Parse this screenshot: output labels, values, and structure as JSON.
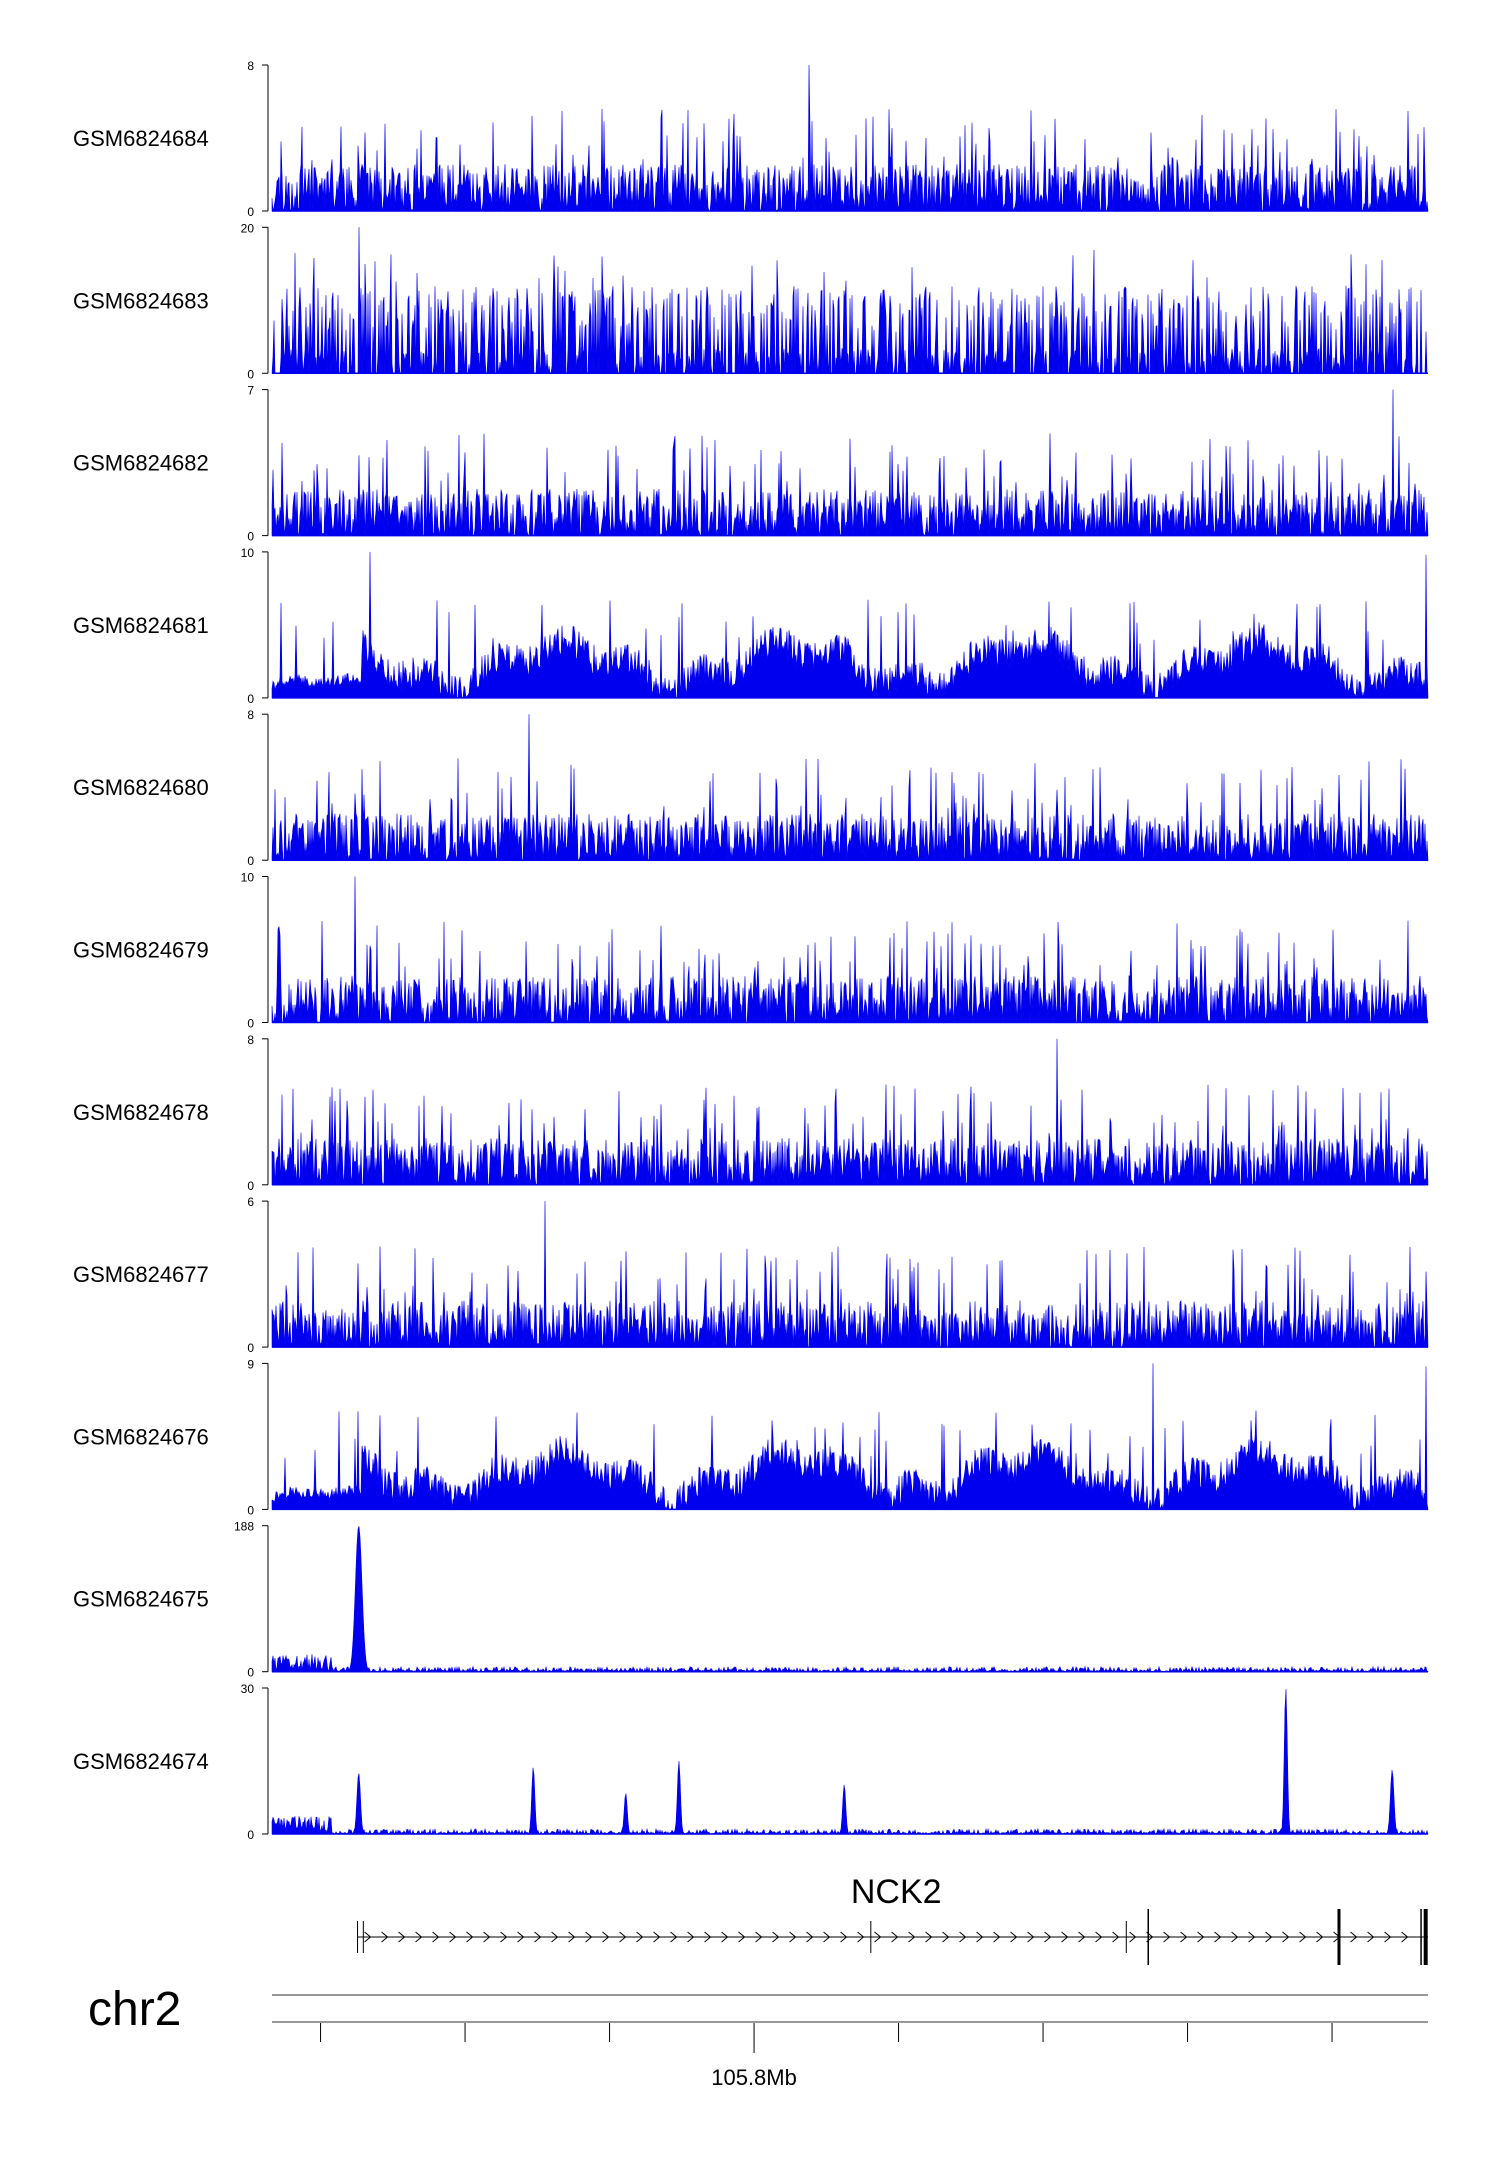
{
  "chart_data": {
    "type": "area",
    "colors": {
      "signal": "#0000EE",
      "axis": "#000000",
      "ideogram": "#777777"
    },
    "tracks": [
      {
        "name": "GSM6824684",
        "ymax": "8",
        "ymin": "0",
        "profile": "noisy",
        "seed": 11
      },
      {
        "name": "GSM6824683",
        "ymax": "20",
        "ymin": "0",
        "profile": "sparse",
        "seed": 23
      },
      {
        "name": "GSM6824682",
        "ymax": "7",
        "ymin": "0",
        "profile": "noisy",
        "seed": 37
      },
      {
        "name": "GSM6824681",
        "ymax": "10",
        "ymin": "0",
        "profile": "dense",
        "seed": 41
      },
      {
        "name": "GSM6824680",
        "ymax": "8",
        "ymin": "0",
        "profile": "noisy",
        "seed": 53
      },
      {
        "name": "GSM6824679",
        "ymax": "10",
        "ymin": "0",
        "profile": "noisy",
        "seed": 67
      },
      {
        "name": "GSM6824678",
        "ymax": "8",
        "ymin": "0",
        "profile": "noisy",
        "seed": 71
      },
      {
        "name": "GSM6824677",
        "ymax": "6",
        "ymin": "0",
        "profile": "noisy",
        "seed": 83
      },
      {
        "name": "GSM6824676",
        "ymax": "9",
        "ymin": "0",
        "profile": "dense",
        "seed": 97
      },
      {
        "name": "GSM6824675",
        "ymax": "188",
        "ymin": "0",
        "profile": "peaks",
        "seed": 101,
        "peaks": [
          {
            "pos": 0.075,
            "height": 1.0,
            "width": 0.0028
          },
          {
            "pos": 0.353,
            "height": 0.02,
            "width": 0.002
          }
        ]
      },
      {
        "name": "GSM6824674",
        "ymax": "30",
        "ymin": "0",
        "profile": "peaks",
        "seed": 113,
        "peaks": [
          {
            "pos": 0.075,
            "height": 0.42,
            "width": 0.0015
          },
          {
            "pos": 0.226,
            "height": 0.46,
            "width": 0.0012
          },
          {
            "pos": 0.306,
            "height": 0.28,
            "width": 0.0012
          },
          {
            "pos": 0.352,
            "height": 0.5,
            "width": 0.0012
          },
          {
            "pos": 0.495,
            "height": 0.34,
            "width": 0.0012
          },
          {
            "pos": 0.877,
            "height": 1.0,
            "width": 0.0012
          },
          {
            "pos": 0.969,
            "height": 0.44,
            "width": 0.0015
          }
        ]
      }
    ],
    "gene": {
      "name": "NCK2",
      "strand": "+",
      "start": 0.074,
      "end": 1.0,
      "exons": [
        {
          "pos": 0.074,
          "tall": false,
          "w": 1
        },
        {
          "pos": 0.079,
          "tall": false,
          "w": 1
        },
        {
          "pos": 0.518,
          "tall": false,
          "w": 1
        },
        {
          "pos": 0.739,
          "tall": false,
          "w": 1
        },
        {
          "pos": 0.758,
          "tall": true,
          "w": 1.5
        },
        {
          "pos": 0.923,
          "tall": true,
          "w": 3
        },
        {
          "pos": 0.994,
          "tall": true,
          "w": 1.5
        },
        {
          "pos": 0.998,
          "tall": true,
          "w": 4
        }
      ]
    },
    "chromosome": "chr2",
    "axis": {
      "ticks": [
        0.042,
        0.167,
        0.292,
        0.417,
        0.542,
        0.667,
        0.792,
        0.917
      ],
      "labeled_tick": 0.417,
      "label": "105.8Mb"
    }
  }
}
